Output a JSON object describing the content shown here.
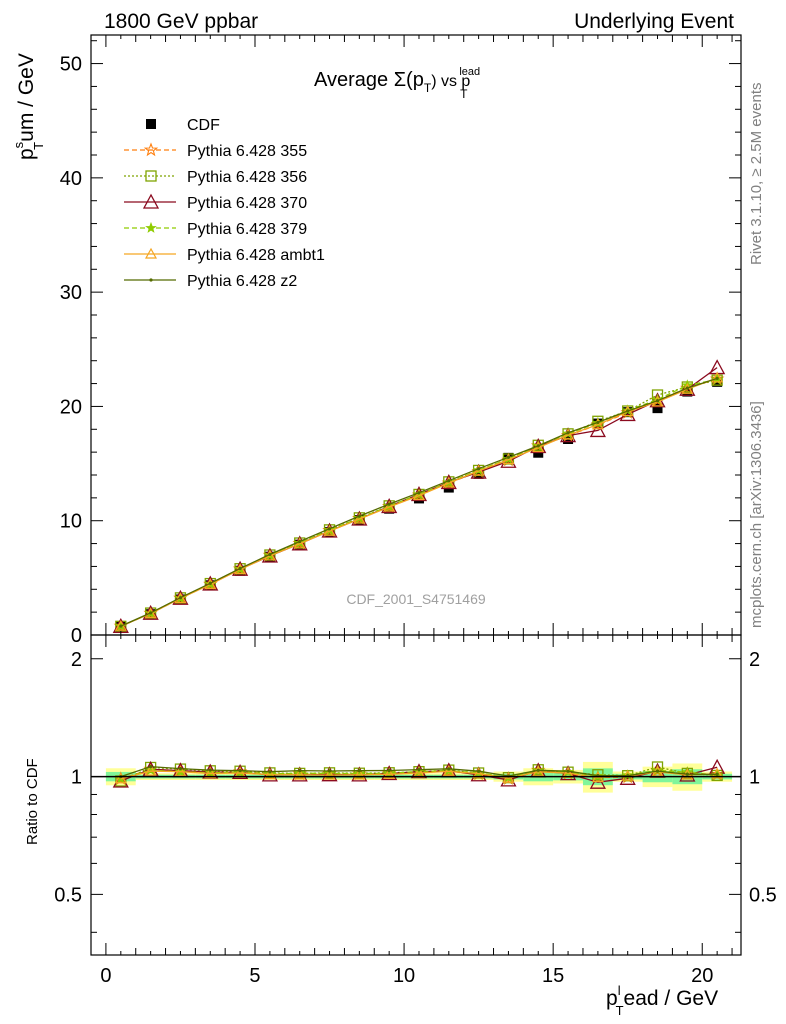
{
  "header": {
    "left": "1800 GeV ppbar",
    "right": "Underlying Event",
    "title_main": "Average Σ(p",
    "title_sub_T": "T",
    "title_after": ") vs p",
    "title_sup_lead": "lead",
    "title_sub_T2": "T"
  },
  "side_labels": {
    "rivet": "Rivet 3.1.10, ≥ 2.5M events",
    "mcplots": "mcplots.cern.ch [arXiv:1306.3436]"
  },
  "watermark": "CDF_2001_S4751469",
  "axes": {
    "ylabel_main_p": "p",
    "ylabel_main_sup": "s",
    "ylabel_main_sub": "T",
    "ylabel_main_rest": "um / GeV",
    "ylabel_ratio": "Ratio to CDF",
    "xlabel_p": "p",
    "xlabel_sup": "l",
    "xlabel_sub": "T",
    "xlabel_rest": "ead / GeV",
    "main_yticks": [
      "0",
      "10",
      "20",
      "30",
      "40",
      "50"
    ],
    "ratio_yticks": [
      "0.5",
      "1",
      "2"
    ],
    "xticks": [
      "0",
      "5",
      "10",
      "15",
      "20"
    ]
  },
  "colors": {
    "cdf": "#000000",
    "p355": "#ff7f0e",
    "p356": "#7fa300",
    "p370": "#8b0a1f",
    "p379": "#8fcc00",
    "ambt1": "#f5a623",
    "z2": "#556b00",
    "band_inner": "#7ff59a",
    "band_outer": "#ffff99"
  },
  "chart_data": {
    "type": "line",
    "x": [
      0.5,
      1.5,
      2.5,
      3.5,
      4.5,
      5.5,
      6.5,
      7.5,
      8.5,
      9.5,
      10.5,
      11.5,
      12.5,
      13.5,
      14.5,
      15.5,
      16.5,
      17.5,
      18.5,
      19.5,
      20.5
    ],
    "xlim": [
      -0.5,
      21.3
    ],
    "ylim": [
      0,
      52.5
    ],
    "ratio_ylim_log": [
      0.35,
      2.3
    ],
    "series": [
      {
        "name": "CDF",
        "style": "data",
        "values": [
          0.78,
          1.82,
          3.11,
          4.35,
          5.62,
          6.85,
          7.9,
          9.0,
          10.05,
          11.05,
          11.95,
          12.9,
          14.1,
          15.5,
          15.95,
          17.15,
          18.5,
          19.5,
          19.85,
          21.3,
          22.15
        ],
        "rel_err": [
          0.05,
          0.02,
          0.02,
          0.02,
          0.02,
          0.02,
          0.02,
          0.02,
          0.02,
          0.02,
          0.02,
          0.02,
          0.02,
          0.03,
          0.05,
          0.04,
          0.09,
          0.03,
          0.06,
          0.08,
          0.03
        ]
      },
      {
        "name": "Pythia 6.428 355",
        "values": [
          0.77,
          1.9,
          3.22,
          4.45,
          5.78,
          6.98,
          8.02,
          9.15,
          10.2,
          11.25,
          12.25,
          13.3,
          14.3,
          15.3,
          16.55,
          17.45,
          18.4,
          19.45,
          20.55,
          21.6,
          22.4
        ]
      },
      {
        "name": "Pythia 6.428 356",
        "values": [
          0.76,
          1.92,
          3.25,
          4.5,
          5.8,
          7.0,
          8.05,
          9.2,
          10.25,
          11.3,
          12.3,
          13.4,
          14.4,
          15.4,
          16.6,
          17.6,
          18.7,
          19.6,
          21.0,
          21.7,
          22.3
        ]
      },
      {
        "name": "Pythia 6.428 370",
        "values": [
          0.76,
          1.9,
          3.22,
          4.47,
          5.76,
          6.92,
          7.98,
          9.1,
          10.15,
          11.25,
          12.3,
          13.35,
          14.25,
          15.2,
          16.5,
          17.45,
          17.9,
          19.3,
          20.5,
          21.5,
          23.4
        ]
      },
      {
        "name": "Pythia 6.428 379",
        "values": [
          0.77,
          1.89,
          3.2,
          4.45,
          5.77,
          6.96,
          8.06,
          9.17,
          10.23,
          11.27,
          12.31,
          13.35,
          14.42,
          15.4,
          16.55,
          17.62,
          18.55,
          19.65,
          20.6,
          21.85,
          22.35
        ]
      },
      {
        "name": "Pythia 6.428 ambt1",
        "values": [
          0.77,
          1.88,
          3.2,
          4.43,
          5.74,
          6.93,
          7.98,
          9.08,
          10.15,
          11.2,
          12.2,
          13.3,
          14.35,
          15.35,
          16.4,
          17.5,
          18.4,
          19.55,
          20.4,
          21.5,
          22.5
        ]
      },
      {
        "name": "Pythia 6.428 z2",
        "values": [
          0.78,
          1.93,
          3.26,
          4.52,
          5.82,
          7.05,
          8.18,
          9.3,
          10.4,
          11.45,
          12.45,
          13.5,
          14.55,
          15.55,
          16.55,
          17.7,
          18.6,
          19.6,
          20.5,
          21.6,
          22.45
        ]
      }
    ]
  }
}
